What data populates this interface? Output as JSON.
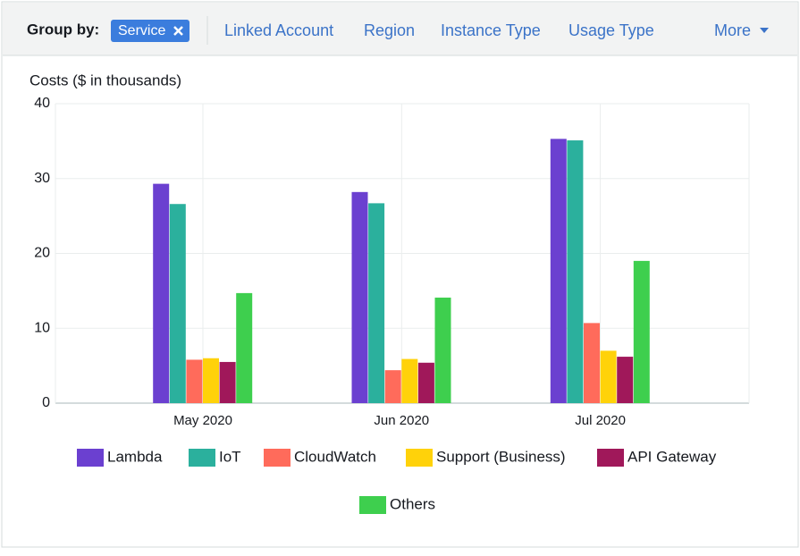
{
  "toolbar": {
    "label": "Group by:",
    "selected": "Service",
    "options": [
      "Linked Account",
      "Region",
      "Instance Type",
      "Usage Type"
    ],
    "more": "More"
  },
  "chart_data": {
    "type": "bar",
    "y_axis_title": "Costs ($ in thousands)",
    "categories": [
      "May 2020",
      "Jun 2020",
      "Jul 2020"
    ],
    "series": [
      {
        "name": "Lambda",
        "color": "#6b40d0",
        "values": [
          29.3,
          28.2,
          35.3
        ]
      },
      {
        "name": "IoT",
        "color": "#2bb09d",
        "values": [
          26.6,
          26.7,
          35.1
        ]
      },
      {
        "name": "CloudWatch",
        "color": "#ff6b5b",
        "values": [
          5.8,
          4.4,
          10.7
        ]
      },
      {
        "name": "Support (Business)",
        "color": "#ffd20a",
        "values": [
          6.0,
          5.9,
          7.0
        ]
      },
      {
        "name": "API Gateway",
        "color": "#a0185a",
        "values": [
          5.5,
          5.4,
          6.2
        ]
      },
      {
        "name": "Others",
        "color": "#3ecf4e",
        "values": [
          14.7,
          14.1,
          19.0
        ]
      }
    ],
    "ylim": [
      0,
      40
    ],
    "yticks": [
      0,
      10,
      20,
      30,
      40
    ],
    "grid": true
  }
}
